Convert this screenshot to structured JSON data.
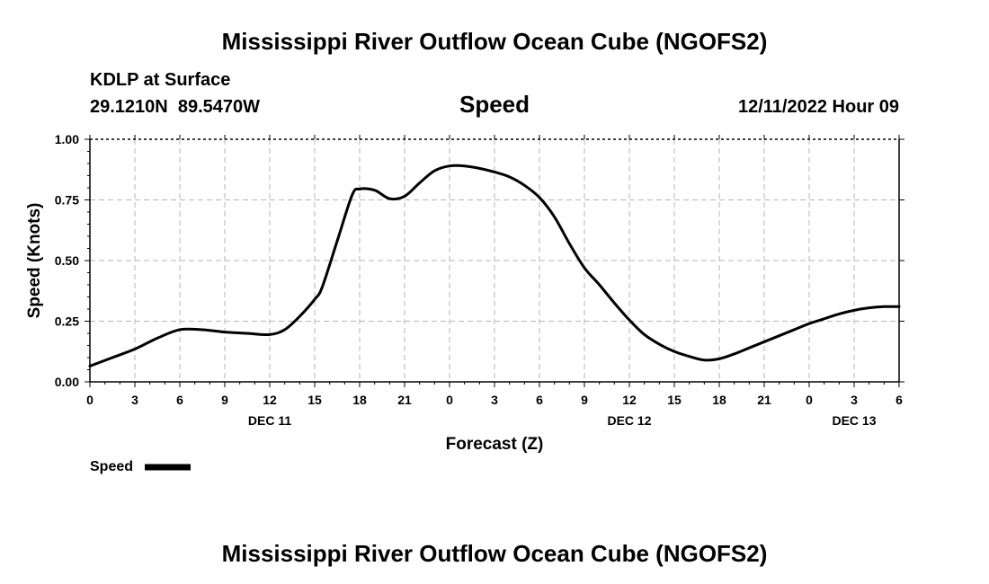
{
  "header": {
    "title": "Mississippi River Outflow Ocean Cube (NGOFS2)",
    "station": "KDLP at Surface",
    "coords": "29.1210N  89.5470W",
    "timestamp": "12/11/2022 Hour 09"
  },
  "footer": {
    "title": "Mississippi River Outflow Ocean Cube (NGOFS2)"
  },
  "chart_data": {
    "type": "line",
    "title": "Speed",
    "xlabel": "Forecast (Z)",
    "ylabel": "Speed (Knots)",
    "xlim": [
      0,
      54
    ],
    "ylim": [
      0,
      1
    ],
    "grid": true,
    "x_tick_values": [
      0,
      3,
      6,
      9,
      12,
      15,
      18,
      21,
      24,
      27,
      30,
      33,
      36,
      39,
      42,
      45,
      48,
      51,
      54
    ],
    "x_tick_labels": [
      "0",
      "3",
      "6",
      "9",
      "12",
      "15",
      "18",
      "21",
      "0",
      "3",
      "6",
      "9",
      "12",
      "15",
      "18",
      "21",
      "0",
      "3",
      "6"
    ],
    "date_labels": [
      {
        "x": 12,
        "label": "DEC 11"
      },
      {
        "x": 36,
        "label": "DEC 12"
      },
      {
        "x": 51,
        "label": "DEC 13"
      }
    ],
    "y_ticks": [
      {
        "value": 0,
        "label": "0.00"
      },
      {
        "value": 0.25,
        "label": "0.25"
      },
      {
        "value": 0.5,
        "label": "0.50"
      },
      {
        "value": 0.75,
        "label": "0.75"
      },
      {
        "value": 1,
        "label": "1.00"
      }
    ],
    "legend": {
      "position": "bottom-left",
      "label": "Speed"
    },
    "series": [
      {
        "name": "Speed",
        "color": "#000000",
        "x": [
          0,
          1.5,
          3,
          4.5,
          6,
          7.5,
          9,
          10.5,
          12,
          13,
          14,
          15,
          15.5,
          16.5,
          17.5,
          18,
          19,
          20,
          21,
          22,
          23,
          24,
          25,
          26,
          27,
          28,
          29,
          30,
          31,
          32,
          33,
          34,
          35,
          36,
          37,
          38,
          39,
          40,
          41,
          42,
          43,
          44,
          45,
          46,
          47,
          48,
          49,
          50,
          51,
          52,
          53,
          54
        ],
        "y": [
          0.065,
          0.1,
          0.135,
          0.18,
          0.215,
          0.215,
          0.205,
          0.2,
          0.195,
          0.215,
          0.27,
          0.34,
          0.39,
          0.58,
          0.77,
          0.795,
          0.79,
          0.755,
          0.765,
          0.82,
          0.87,
          0.89,
          0.89,
          0.88,
          0.865,
          0.845,
          0.81,
          0.76,
          0.68,
          0.57,
          0.47,
          0.4,
          0.325,
          0.255,
          0.195,
          0.155,
          0.125,
          0.105,
          0.09,
          0.095,
          0.115,
          0.14,
          0.165,
          0.19,
          0.215,
          0.24,
          0.26,
          0.28,
          0.295,
          0.305,
          0.31,
          0.31
        ]
      }
    ]
  }
}
